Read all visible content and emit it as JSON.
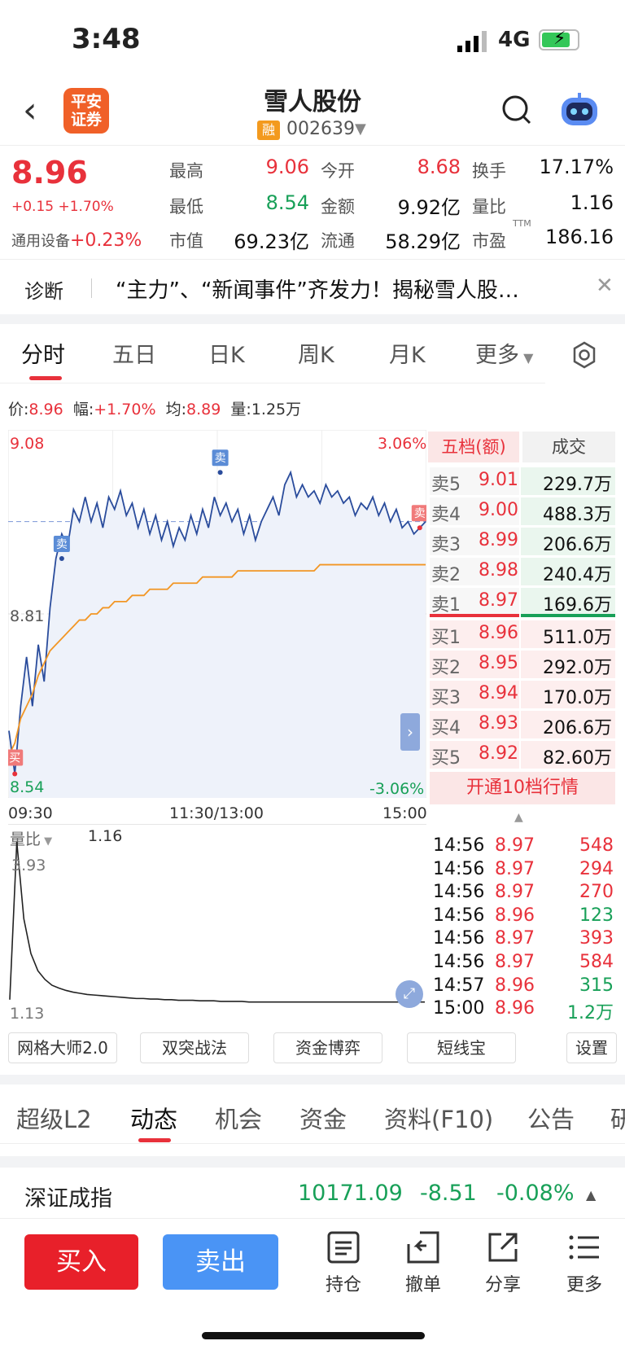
{
  "status_bar": {
    "time": "3:48",
    "network": "4G"
  },
  "header": {
    "logo_text": "平安证券",
    "logo_line1": "平安",
    "logo_line2": "证券",
    "stock_name": "雪人股份",
    "margin_badge": "融",
    "stock_code": "002639"
  },
  "quote": {
    "price": "8.96",
    "change": "+0.15 +1.70%",
    "sector_label": "通用设备",
    "sector_change": "+0.23%",
    "fields": [
      {
        "label": "最高",
        "value": "9.06"
      },
      {
        "label": "今开",
        "value": "8.68"
      },
      {
        "label": "换手",
        "value": "17.17%"
      },
      {
        "label": "最低",
        "value": "8.54"
      },
      {
        "label": "金额",
        "value": "9.92亿"
      },
      {
        "label": "量比",
        "value": "1.16"
      },
      {
        "label": "市值",
        "value": "69.23亿"
      },
      {
        "label": "流通",
        "value": "58.29亿"
      },
      {
        "label": "市盈",
        "value": "186.16"
      }
    ],
    "ttm": "TTM"
  },
  "diagnosis": {
    "label": "诊断",
    "news": "“主力”、“新闻事件”齐发力！揭秘雪人股…"
  },
  "chart_tabs": [
    {
      "label": "分时"
    },
    {
      "label": "五日"
    },
    {
      "label": "日K"
    },
    {
      "label": "周K"
    },
    {
      "label": "月K"
    },
    {
      "label": "更多"
    }
  ],
  "info_line": {
    "price_label": "价:",
    "price": "8.96",
    "range_label": "幅:",
    "range": "+1.70%",
    "avg_label": "均:",
    "avg": "8.89",
    "vol_label": "量:",
    "vol": "1.25万"
  },
  "chart_data": {
    "type": "line",
    "y_top": "9.08",
    "y_mid": "8.81",
    "y_bottom": "8.54",
    "pct_top": "3.06%",
    "pct_bottom": "-3.06%",
    "x_ticks": [
      "09:30",
      "11:30/13:00",
      "15:00"
    ],
    "ylim": [
      8.54,
      9.08
    ],
    "prev_close": 8.81,
    "price_series": [
      8.62,
      8.55,
      8.66,
      8.74,
      8.66,
      8.76,
      8.7,
      8.82,
      8.9,
      8.94,
      8.92,
      8.98,
      8.96,
      9.0,
      8.96,
      8.99,
      8.95,
      9.0,
      8.98,
      9.01,
      8.97,
      8.99,
      8.95,
      8.98,
      8.94,
      8.97,
      8.93,
      8.96,
      8.92,
      8.95,
      8.93,
      8.97,
      8.94,
      8.98,
      8.95,
      9.0,
      8.97,
      8.99,
      8.96,
      8.98,
      8.94,
      8.97,
      8.93,
      8.96,
      8.98,
      9.0,
      8.97,
      9.02,
      9.04,
      9.0,
      9.02,
      9.0,
      9.01,
      8.99,
      9.02,
      9.0,
      9.01,
      8.99,
      9.0,
      8.97,
      8.99,
      8.98,
      9.0,
      8.97,
      8.99,
      8.96,
      8.98,
      8.95,
      8.96,
      8.94,
      8.95,
      8.96
    ],
    "avg_series": [
      8.58,
      8.6,
      8.64,
      8.66,
      8.68,
      8.71,
      8.73,
      8.75,
      8.76,
      8.77,
      8.78,
      8.79,
      8.8,
      8.8,
      8.81,
      8.81,
      8.82,
      8.82,
      8.83,
      8.83,
      8.83,
      8.84,
      8.84,
      8.84,
      8.85,
      8.85,
      8.85,
      8.85,
      8.86,
      8.86,
      8.86,
      8.86,
      8.86,
      8.87,
      8.87,
      8.87,
      8.87,
      8.87,
      8.87,
      8.88,
      8.88,
      8.88,
      8.88,
      8.88,
      8.88,
      8.88,
      8.88,
      8.88,
      8.88,
      8.88,
      8.88,
      8.88,
      8.88,
      8.89,
      8.89,
      8.89,
      8.89,
      8.89,
      8.89,
      8.89,
      8.89,
      8.89,
      8.89,
      8.89,
      8.89,
      8.89,
      8.89,
      8.89,
      8.89,
      8.89,
      8.89,
      8.89
    ],
    "markers": [
      {
        "label": "卖",
        "index": 9,
        "value": 8.9
      },
      {
        "label": "卖",
        "index": 36,
        "value": 9.04
      },
      {
        "label": "卖",
        "index": 70,
        "value": 8.95
      },
      {
        "label": "买",
        "index": 1,
        "value": 8.55
      }
    ]
  },
  "volume_ratio": {
    "label": "量比",
    "value": "1.16",
    "top": "3.93",
    "bottom": "1.13",
    "series": [
      1.2,
      3.93,
      2.6,
      2.0,
      1.7,
      1.55,
      1.45,
      1.4,
      1.36,
      1.33,
      1.31,
      1.29,
      1.28,
      1.27,
      1.26,
      1.25,
      1.24,
      1.23,
      1.22,
      1.22,
      1.21,
      1.21,
      1.2,
      1.2,
      1.19,
      1.19,
      1.19,
      1.18,
      1.18,
      1.18,
      1.17,
      1.17,
      1.17,
      1.17,
      1.16,
      1.16,
      1.16,
      1.16,
      1.16,
      1.16,
      1.16,
      1.16,
      1.16,
      1.16,
      1.16,
      1.16,
      1.16,
      1.16,
      1.16,
      1.16,
      1.16,
      1.16,
      1.16,
      1.16,
      1.16,
      1.16,
      1.16,
      1.16,
      1.16,
      1.16
    ]
  },
  "order_book": {
    "tab_active": "五档(额)",
    "tab_other": "成交",
    "asks": [
      {
        "label": "卖5",
        "price": "9.01",
        "amount": "229.7万"
      },
      {
        "label": "卖4",
        "price": "9.00",
        "amount": "488.3万"
      },
      {
        "label": "卖3",
        "price": "8.99",
        "amount": "206.6万"
      },
      {
        "label": "卖2",
        "price": "8.98",
        "amount": "240.4万"
      },
      {
        "label": "卖1",
        "price": "8.97",
        "amount": "169.6万"
      }
    ],
    "bids": [
      {
        "label": "买1",
        "price": "8.96",
        "amount": "511.0万"
      },
      {
        "label": "买2",
        "price": "8.95",
        "amount": "292.0万"
      },
      {
        "label": "买3",
        "price": "8.94",
        "amount": "170.0万"
      },
      {
        "label": "买4",
        "price": "8.93",
        "amount": "206.6万"
      },
      {
        "label": "买5",
        "price": "8.92",
        "amount": "82.60万"
      }
    ],
    "open10": "开通10档行情"
  },
  "trades": [
    {
      "time": "14:56",
      "price": "8.97",
      "vol": "548",
      "dir": "up"
    },
    {
      "time": "14:56",
      "price": "8.97",
      "vol": "294",
      "dir": "up"
    },
    {
      "time": "14:56",
      "price": "8.97",
      "vol": "270",
      "dir": "up"
    },
    {
      "time": "14:56",
      "price": "8.96",
      "vol": "123",
      "dir": "down"
    },
    {
      "time": "14:56",
      "price": "8.97",
      "vol": "393",
      "dir": "up"
    },
    {
      "time": "14:56",
      "price": "8.97",
      "vol": "584",
      "dir": "up"
    },
    {
      "time": "14:57",
      "price": "8.96",
      "vol": "315",
      "dir": "down"
    },
    {
      "time": "15:00",
      "price": "8.96",
      "vol": "1.2万",
      "dir": "down"
    }
  ],
  "tools": [
    "网格大师2.0",
    "双突战法",
    "资金博弈",
    "短线宝",
    "设置"
  ],
  "bottom_tabs": [
    "超级L2",
    "动态",
    "机会",
    "资金",
    "资料(F10)",
    "公告",
    "研"
  ],
  "index_bar": {
    "name": "深证成指",
    "value": "10171.09",
    "change": "-8.51",
    "pct": "-0.08%"
  },
  "actions": {
    "buy": "买入",
    "sell": "卖出",
    "nav": [
      "持仓",
      "撤单",
      "分享",
      "更多"
    ]
  },
  "colors": {
    "up": "#e8313b",
    "down": "#18a058",
    "line": "#2a4c9c",
    "avg": "#f29624",
    "buy_btn": "#e8202a",
    "sell_btn": "#4a94f5"
  }
}
